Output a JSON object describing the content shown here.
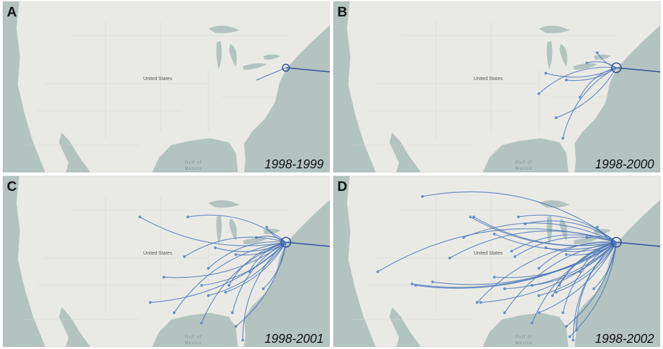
{
  "panels": [
    {
      "letter": "A",
      "period": "1998-1999"
    },
    {
      "letter": "B",
      "period": "1998-2000"
    },
    {
      "letter": "C",
      "period": "1998-2001"
    },
    {
      "letter": "D",
      "period": "1998-2002"
    }
  ],
  "map_labels": {
    "country": "United States",
    "gulf_line1": "Gulf of",
    "gulf_line2": "Mexico"
  }
}
